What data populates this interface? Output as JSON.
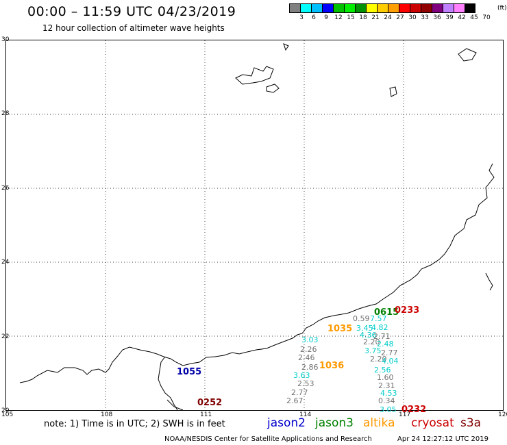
{
  "header": {
    "title": "00:00 – 11:59 UTC 04/23/2019",
    "subtitle": "12 hour collection of altimeter wave heights"
  },
  "color_scale": {
    "unit": "(ft)",
    "swatches": [
      "#808080",
      "#00ffff",
      "#00c0ff",
      "#0000ff",
      "#00c000",
      "#00ee00",
      "#009000",
      "#ffff00",
      "#ffcc00",
      "#ffa000",
      "#ff0000",
      "#cc0000",
      "#900000",
      "#800080",
      "#c080ff",
      "#ff80ff",
      "#000000"
    ],
    "labels": [
      "3",
      "6",
      "9",
      "12",
      "15",
      "18",
      "21",
      "24",
      "27",
      "30",
      "33",
      "36",
      "39",
      "42",
      "45",
      "70"
    ]
  },
  "axes": {
    "lat_labels": [
      "30",
      "28",
      "26",
      "24",
      "22",
      "20"
    ],
    "lon_labels": [
      "105",
      "108",
      "111",
      "114",
      "117",
      "120"
    ]
  },
  "observations": [
    {
      "text": "1055",
      "color": "#0000aa",
      "kind": "time"
    },
    {
      "text": "0252",
      "color": "#800000",
      "kind": "time"
    },
    {
      "text": "1035",
      "color": "#ff9900",
      "kind": "time"
    },
    {
      "text": "1036",
      "color": "#ff9900",
      "kind": "time"
    },
    {
      "text": "0615",
      "color": "#008000",
      "kind": "time"
    },
    {
      "text": "0233",
      "color": "#cc0000",
      "kind": "time"
    },
    {
      "text": "0232",
      "color": "#cc0000",
      "kind": "time"
    },
    {
      "text": "3.03",
      "color": "#00cccc",
      "kind": "val"
    },
    {
      "text": "2.26",
      "color": "#707070",
      "kind": "val"
    },
    {
      "text": "2.46",
      "color": "#707070",
      "kind": "val"
    },
    {
      "text": "2.86",
      "color": "#707070",
      "kind": "val"
    },
    {
      "text": "3.63",
      "color": "#00cccc",
      "kind": "val"
    },
    {
      "text": "2.53",
      "color": "#707070",
      "kind": "val"
    },
    {
      "text": "2.77",
      "color": "#707070",
      "kind": "val"
    },
    {
      "text": "2.67",
      "color": "#707070",
      "kind": "val"
    },
    {
      "text": "0.59",
      "color": "#707070",
      "kind": "val"
    },
    {
      "text": "7.57",
      "color": "#00cccc",
      "kind": "val"
    },
    {
      "text": "3.45",
      "color": "#00cccc",
      "kind": "val"
    },
    {
      "text": "4.82",
      "color": "#00cccc",
      "kind": "val"
    },
    {
      "text": "4.36",
      "color": "#00cccc",
      "kind": "val"
    },
    {
      "text": "2.71",
      "color": "#707070",
      "kind": "val"
    },
    {
      "text": "2.20",
      "color": "#707070",
      "kind": "val"
    },
    {
      "text": "2.48",
      "color": "#00cccc",
      "kind": "val"
    },
    {
      "text": "3.75",
      "color": "#00cccc",
      "kind": "val"
    },
    {
      "text": "2.77",
      "color": "#707070",
      "kind": "val"
    },
    {
      "text": "2.20",
      "color": "#707070",
      "kind": "val"
    },
    {
      "text": "4.04",
      "color": "#00cccc",
      "kind": "val"
    },
    {
      "text": "2.56",
      "color": "#00cccc",
      "kind": "val"
    },
    {
      "text": "1.60",
      "color": "#707070",
      "kind": "val"
    },
    {
      "text": "2.31",
      "color": "#707070",
      "kind": "val"
    },
    {
      "text": "4.53",
      "color": "#00cccc",
      "kind": "val"
    },
    {
      "text": "0.34",
      "color": "#707070",
      "kind": "val"
    },
    {
      "text": "3.05",
      "color": "#00cccc",
      "kind": "val"
    }
  ],
  "note": "note: 1) Time is in UTC; 2) SWH is in feet",
  "legend": [
    {
      "label": "jason2",
      "color": "#0000cc"
    },
    {
      "label": "jason3",
      "color": "#008000"
    },
    {
      "label": "altika",
      "color": "#ff9900"
    },
    {
      "label": "cryosat",
      "color": "#cc0000"
    },
    {
      "label": "s3a",
      "color": "#800000"
    }
  ],
  "credit": "NOAA/NESDIS Center for Satellite Applications and Research",
  "timestamp": "Apr 24 12:27:12 UTC 2019"
}
